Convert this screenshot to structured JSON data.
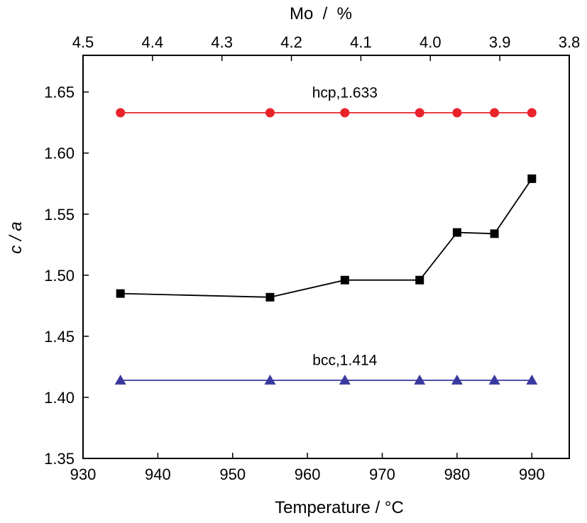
{
  "chart_data": {
    "type": "line",
    "x_label_text": "Temperature",
    "x_label_unit": "°C",
    "y_label": "c / a",
    "top_axis": {
      "label": "Mo  /  %",
      "ticks": [
        4.5,
        4.4,
        4.3,
        4.2,
        4.1,
        4.0,
        3.9,
        3.8
      ],
      "tick_labels": [
        "4.5",
        "4.4",
        "4.3",
        "4.2",
        "4.1",
        "4.0",
        "3.9",
        "3.8"
      ],
      "reversed": true,
      "range": [
        4.5,
        3.8
      ]
    },
    "x_range": [
      930,
      995
    ],
    "y_range": [
      1.35,
      1.68
    ],
    "x_ticks": [
      930,
      940,
      950,
      960,
      970,
      980,
      990
    ],
    "x_tick_labels": [
      "930",
      "940",
      "950",
      "960",
      "970",
      "980",
      "990"
    ],
    "y_ticks": [
      1.35,
      1.4,
      1.45,
      1.5,
      1.55,
      1.6,
      1.65
    ],
    "y_tick_labels": [
      "1.35",
      "1.40",
      "1.45",
      "1.50",
      "1.55",
      "1.60",
      "1.65"
    ],
    "grid": false,
    "series": [
      {
        "key": "hcp",
        "color": "#e8232a",
        "line_color": "#e8232a",
        "marker": "circle",
        "x": [
          935,
          955,
          965,
          975,
          980,
          985,
          990
        ],
        "y": [
          1.633,
          1.633,
          1.633,
          1.633,
          1.633,
          1.633,
          1.633
        ]
      },
      {
        "key": "measured",
        "color": "#000000",
        "line_color": "#000000",
        "marker": "square",
        "x": [
          935,
          955,
          965,
          975,
          980,
          985,
          990
        ],
        "y": [
          1.485,
          1.482,
          1.496,
          1.496,
          1.535,
          1.534,
          1.579
        ]
      },
      {
        "key": "bcc",
        "color": "#3a3a9e",
        "line_color": "#3a3a9e",
        "marker": "triangle",
        "x": [
          935,
          955,
          965,
          975,
          980,
          985,
          990
        ],
        "y": [
          1.414,
          1.414,
          1.414,
          1.414,
          1.414,
          1.414,
          1.414
        ]
      }
    ],
    "annotations": [
      {
        "key": "hcp",
        "text": "hcp,1.633",
        "x": 965,
        "y": 1.6455
      },
      {
        "key": "bcc",
        "text": "bcc,1.414",
        "x": 965,
        "y": 1.4265
      }
    ]
  }
}
